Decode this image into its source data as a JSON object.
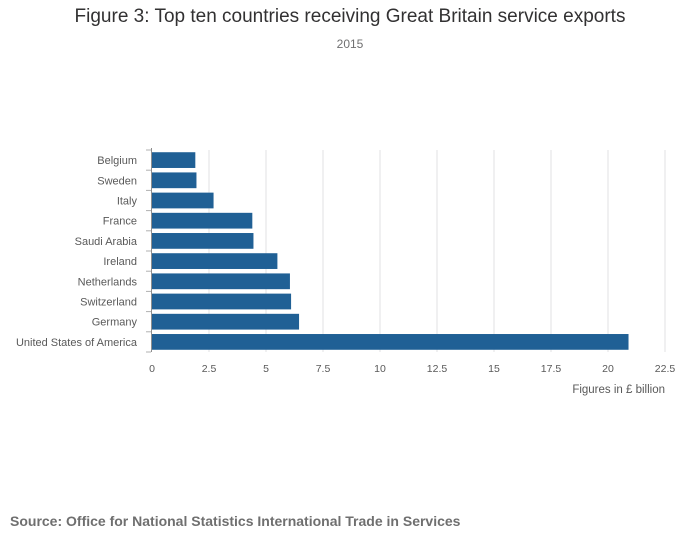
{
  "chart_data": {
    "type": "bar",
    "orientation": "horizontal",
    "title": "Figure 3: Top ten countries receiving Great Britain service exports",
    "subtitle": "2015",
    "xlabel": "Figures in £ billion",
    "ylabel": "",
    "categories": [
      "Belgium",
      "Sweden",
      "Italy",
      "France",
      "Saudi Arabia",
      "Ireland",
      "Netherlands",
      "Switzerland",
      "Germany",
      "United States of America"
    ],
    "values": [
      1.9,
      1.95,
      2.7,
      4.4,
      4.45,
      5.5,
      6.05,
      6.1,
      6.45,
      20.9
    ],
    "xlim": [
      0,
      22.5
    ],
    "xticks": [
      0,
      2.5,
      5,
      7.5,
      10,
      12.5,
      15,
      17.5,
      20,
      22.5
    ],
    "xtick_labels": [
      "0",
      "2.5",
      "5",
      "7.5",
      "10",
      "12.5",
      "15",
      "17.5",
      "20",
      "22.5"
    ],
    "grid": true,
    "legend": "none",
    "bar_color": "#206095"
  },
  "source": "Source: Office for National Statistics International Trade in Services"
}
